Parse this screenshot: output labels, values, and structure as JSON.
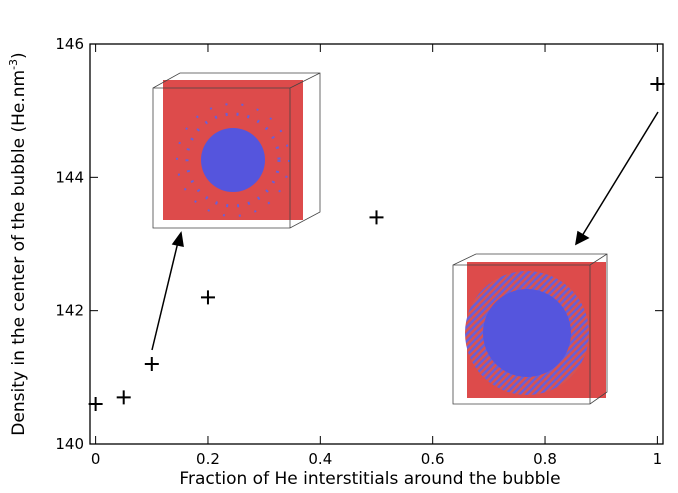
{
  "chart_data": {
    "type": "scatter",
    "xlabel": "Fraction of He interstitials around the bubble",
    "ylabel": "Density in the center of the bubble (He.nm",
    "ylabel_superscript": "-3",
    "ylabel_close": ")",
    "x": [
      0,
      0.05,
      0.1,
      0.2,
      0.5,
      1
    ],
    "series": [
      {
        "color": "#000000",
        "values": [
          140.6,
          140.7,
          141.2,
          142.2,
          143.4,
          145.4
        ]
      }
    ],
    "xlim": [
      -0.01,
      1.01
    ],
    "ylim": [
      140,
      146
    ],
    "xticks": [
      0,
      0.2,
      0.4,
      0.6,
      0.8,
      1
    ],
    "yticks": [
      140,
      142,
      144,
      146
    ]
  }
}
